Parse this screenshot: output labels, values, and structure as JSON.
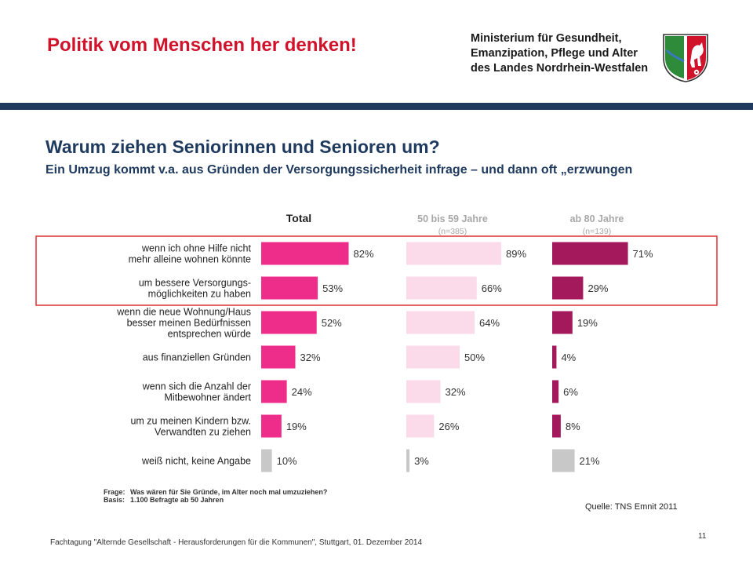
{
  "header": {
    "slogan": "Politik vom Menschen her denken!",
    "ministry_lines": [
      "Ministerium für Gesundheit,",
      "Emanzipation, Pflege und Alter",
      "des Landes Nordrhein-Westfalen"
    ],
    "crest_icon": "nrw-coat-of-arms-icon"
  },
  "slide": {
    "title": "Warum ziehen Seniorinnen und Senioren um?",
    "subtitle": "Ein Umzug kommt v.a. aus Gründen der Versorgungssicherheit infrage – und dann oft „erzwungen"
  },
  "chart_data": {
    "type": "bar",
    "orientation": "horizontal",
    "categories": [
      "wenn ich ohne Hilfe nicht\nmehr alleine wohnen könnte",
      "um bessere Versorgungs-\nmöglichkeiten zu haben",
      "wenn die neue Wohnung/Haus\nbesser meinen Bedürfnissen\nentsprechen würde",
      "aus finanziellen Gründen",
      "wenn sich die Anzahl der\nMitbewohner ändert",
      "um zu meinen Kindern bzw.\nVerwandten zu ziehen",
      "weiß nicht, keine Angabe"
    ],
    "series": [
      {
        "name": "Total",
        "sample": "",
        "color": "#ee2d8a",
        "last_color": "#c8c8c8",
        "values": [
          82,
          53,
          52,
          32,
          24,
          19,
          10
        ]
      },
      {
        "name": "50 bis 59 Jahre",
        "sample": "(n=385)",
        "color": "#fbdaea",
        "last_color": "#c8c8c8",
        "values": [
          89,
          66,
          64,
          50,
          32,
          26,
          3
        ]
      },
      {
        "name": "ab 80 Jahre",
        "sample": "(n=139)",
        "color": "#a3195b",
        "last_color": "#c8c8c8",
        "values": [
          71,
          29,
          19,
          4,
          6,
          8,
          21
        ]
      }
    ],
    "unit": "%",
    "highlighted_rows": [
      0,
      1
    ],
    "highlight_color": "#e03030",
    "note_lines": [
      {
        "label": "Frage:",
        "text": "Was wären für Sie Gründe, im Alter noch mal umzuziehen?"
      },
      {
        "label": "Basis:",
        "text": "1.100 Befragte ab 50 Jahren"
      }
    ]
  },
  "footer": {
    "source": "Quelle: TNS Emnit 2011",
    "event": "Fachtagung \"Alternde Gesellschaft - Herausforderungen für die Kommunen\", Stuttgart, 01. Dezember 2014",
    "page_number": "11"
  }
}
